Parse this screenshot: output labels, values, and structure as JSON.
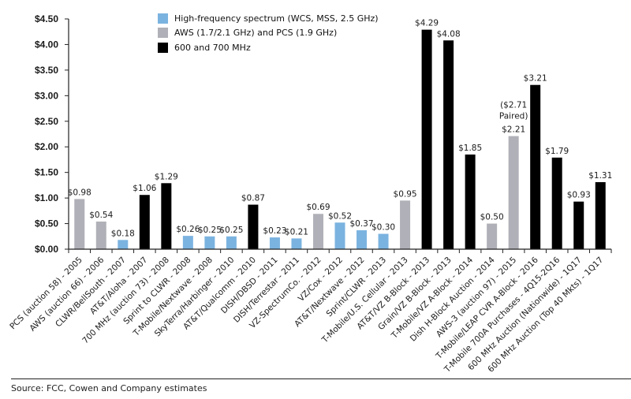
{
  "chart_data": {
    "type": "bar",
    "title": "",
    "xlabel": "",
    "ylabel": "",
    "ylim": [
      0,
      4.5
    ],
    "yticks": [
      "$0.00",
      "$0.50",
      "$1.00",
      "$1.50",
      "$2.00",
      "$2.50",
      "$3.00",
      "$3.50",
      "$4.00",
      "$4.50"
    ],
    "ytick_values": [
      0,
      0.5,
      1.0,
      1.5,
      2.0,
      2.5,
      3.0,
      3.5,
      4.0,
      4.5
    ],
    "grid": false,
    "legend_position": "top-center",
    "legend": [
      {
        "key": "high",
        "label": "High-frequency spectrum (WCS, MSS, 2.5 GHz)",
        "color": "#7bb3e0"
      },
      {
        "key": "aws",
        "label": "AWS (1.7/2.1 GHz) and PCS (1.9 GHz)",
        "color": "#b0b0b8"
      },
      {
        "key": "low",
        "label": "600 and 700 MHz",
        "color": "#000000"
      }
    ],
    "categories": [
      "PCS (auction 58) - 2005",
      "AWS (auction 66) - 2006",
      "CLWR/BellSouth - 2007",
      "AT&T/Aloha - 2007",
      "700 MHz (auction 73) - 2008",
      "Sprint to CLWR - 2008",
      "T-Mobile/Nextwave - 2008",
      "SkyTerra/Harbinger - 2010",
      "AT&T/Qualcomm - 2010",
      "DISH/DBSD - 2011",
      "DISH/Terrestar - 2011",
      "VZ-SpectrumCo. - 2012",
      "VZ/Cox - 2012",
      "AT&T/Nextwave - 2012",
      "Sprint/CLWR - 2013",
      "T-Mobile/U.S. Cellular - 2013",
      "AT&T/VZ B-Block - 2013",
      "Grain/VZ B-Block - 2013",
      "T-Mobile/VZ A-Block - 2014",
      "Dish H-Block Auction - 2014",
      "AWS-3 (auction 97) - 2015",
      "T-Mobile/LEAP CVR A-Block - 2016",
      "T-Mobile 700A Purchases - 4Q15-2Q16",
      "600 MHz Auction (Nationwide) - 1Q17",
      "600 MHz Auction (Top 40 Mkts) - 1Q17"
    ],
    "values": [
      0.98,
      0.54,
      0.18,
      1.06,
      1.29,
      0.26,
      0.25,
      0.25,
      0.87,
      0.23,
      0.21,
      0.69,
      0.52,
      0.37,
      0.3,
      0.95,
      4.29,
      4.08,
      1.85,
      0.5,
      2.21,
      3.21,
      1.79,
      0.93,
      1.31
    ],
    "series_key": [
      "aws",
      "aws",
      "high",
      "low",
      "low",
      "high",
      "high",
      "high",
      "low",
      "high",
      "high",
      "aws",
      "high",
      "high",
      "high",
      "aws",
      "low",
      "low",
      "low",
      "aws",
      "aws",
      "low",
      "low",
      "low",
      "low"
    ],
    "data_labels": [
      "$0.98",
      "$0.54",
      "$0.18",
      "$1.06",
      "$1.29",
      "$0.26",
      "$0.25",
      "$0.25",
      "$0.87",
      "$0.23",
      "$0.21",
      "$0.69",
      "$0.52",
      "$0.37",
      "$0.30",
      "$0.95",
      "$4.29",
      "$4.08",
      "$1.85",
      "$0.50",
      "$2.21",
      "$3.21",
      "$1.79",
      "$0.93",
      "$1.31"
    ],
    "annotations": [
      {
        "category": "AWS-3 (auction 97) - 2015",
        "lines": [
          "($2.71",
          "Paired)"
        ]
      }
    ]
  },
  "source": "Source: FCC, Cowen and Company estimates"
}
